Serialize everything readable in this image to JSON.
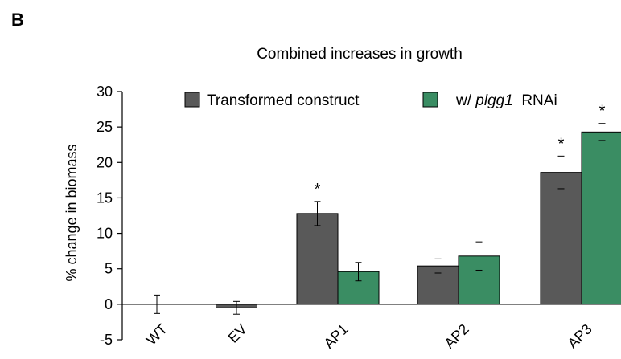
{
  "panel_label": "B",
  "colors": {
    "series1": "#595959",
    "series2": "#3a8d63",
    "axis": "#000000"
  },
  "chart_data": {
    "type": "bar",
    "title": "Combined increases in growth",
    "xlabel": "",
    "ylabel": "% change in biomass",
    "ylim": [
      -5,
      30
    ],
    "yticks": [
      "-5",
      "0",
      "5",
      "10",
      "15",
      "20",
      "25",
      "30"
    ],
    "categories": [
      "WT",
      "EV",
      "AP1",
      "AP2",
      "AP3"
    ],
    "legend": {
      "placement": "top",
      "entries": [
        {
          "prefix": "Transformed construct",
          "italic": "",
          "suffix": ""
        },
        {
          "prefix": "w/ ",
          "italic": "plgg1",
          "suffix": "  RNAi"
        }
      ]
    },
    "series": [
      {
        "name": "Transformed construct",
        "values": [
          0,
          -0.5,
          12.8,
          5.4,
          18.6
        ],
        "errors": [
          1.3,
          0.9,
          1.7,
          1.0,
          2.3
        ],
        "significance": [
          "",
          "",
          "*",
          "",
          "*"
        ]
      },
      {
        "name": "w/ plgg1 RNAi",
        "values": [
          null,
          null,
          4.6,
          6.8,
          24.3
        ],
        "errors": [
          null,
          null,
          1.3,
          2.0,
          1.2
        ],
        "significance": [
          "",
          "",
          "",
          "",
          "*"
        ]
      }
    ]
  }
}
